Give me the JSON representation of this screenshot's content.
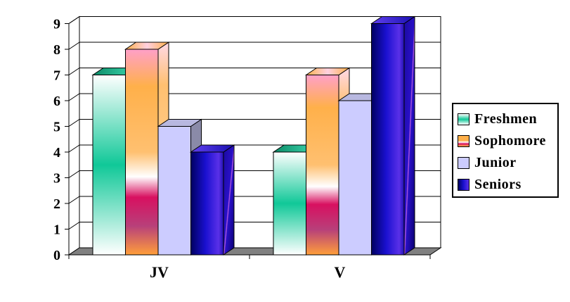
{
  "chart_data": {
    "type": "bar",
    "categories": [
      "JV",
      "V"
    ],
    "series": [
      {
        "name": "Freshmen",
        "values": [
          7,
          4
        ]
      },
      {
        "name": "Sophomore",
        "values": [
          8,
          7
        ]
      },
      {
        "name": "Junior",
        "values": [
          5,
          6
        ]
      },
      {
        "name": "Seniors",
        "values": [
          4,
          9
        ]
      }
    ],
    "ylim": [
      0,
      9
    ],
    "yticks": [
      "0",
      "1",
      "2",
      "3",
      "4",
      "5",
      "6",
      "7",
      "8",
      "9"
    ],
    "grid": true,
    "legend_position": "right",
    "style": "3d-clustered-column",
    "colors": {
      "Freshmen": "#1fc8a0",
      "Sophomore": "#ffb04a",
      "Junior": "#ccccff",
      "Seniors": "#2a10c8",
      "floor": "#808080",
      "wall": "#ffffff"
    }
  }
}
